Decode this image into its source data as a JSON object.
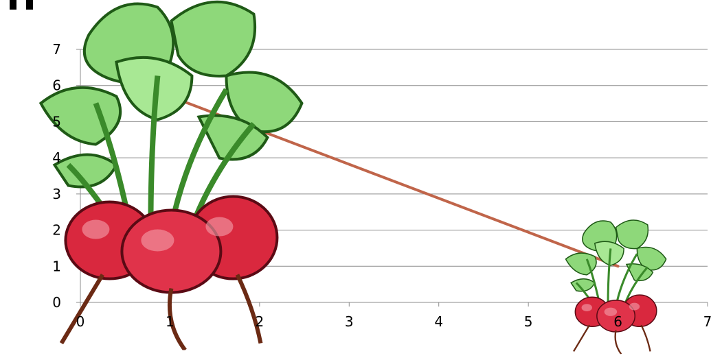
{
  "chart_data": {
    "type": "line",
    "title": "",
    "xlabel": "",
    "ylabel": "",
    "xlim": [
      0,
      7
    ],
    "ylim": [
      0,
      7
    ],
    "x_ticks": [
      "0",
      "1",
      "2",
      "3",
      "4",
      "5",
      "6",
      "7"
    ],
    "y_ticks": [
      "0",
      "1",
      "2",
      "3",
      "4",
      "5",
      "6",
      "7"
    ],
    "grid": "horizontal",
    "series": [
      {
        "x": [
          1,
          6
        ],
        "y": [
          5.7,
          1
        ],
        "color": "#c0654a"
      }
    ],
    "markers": [
      {
        "icon": "radish-bunch-icon",
        "x": 1,
        "y": 5.7,
        "scale": "large"
      },
      {
        "icon": "radish-bunch-icon",
        "x": 6,
        "y": 1,
        "scale": "small"
      }
    ]
  },
  "colors": {
    "line": "#c0654a",
    "grid": "#8c8c8c",
    "axis": "#8c8c8c",
    "leaf": "#8ed87a",
    "leaf_dark": "#3a8a2a",
    "radish": "#d9283e",
    "radish_dark": "#7a0c1c",
    "root": "#6b2a14"
  }
}
